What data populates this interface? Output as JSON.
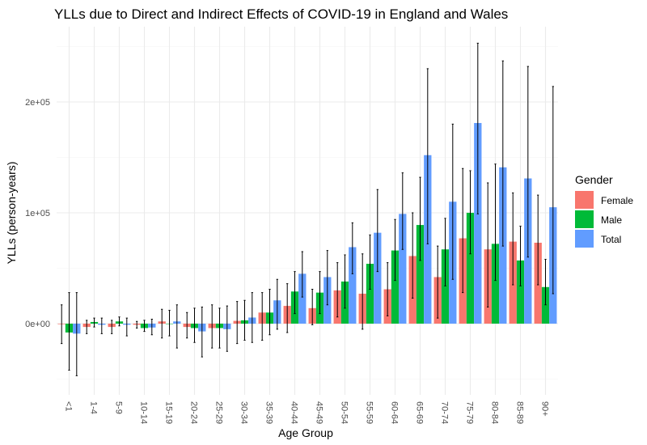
{
  "chart_data": {
    "type": "bar",
    "title": "YLLs due to Direct and Indirect Effects of COVID-19 in England and Wales",
    "xlabel": "Age Group",
    "ylabel": "YLLs (person-years)",
    "ylim": [
      -62000,
      255000
    ],
    "yticks": [
      0,
      100000,
      200000
    ],
    "ytick_labels": [
      "0e+00",
      "1e+05",
      "2e+05"
    ],
    "grid": true,
    "categories": [
      "<1",
      "1-4",
      "5-9",
      "10-14",
      "15-19",
      "20-24",
      "25-29",
      "30-34",
      "35-39",
      "40-44",
      "45-49",
      "50-54",
      "55-59",
      "60-64",
      "65-69",
      "70-74",
      "75-79",
      "80-84",
      "85-89",
      "90+"
    ],
    "legend": {
      "title": "Gender",
      "position": "right"
    },
    "series": [
      {
        "name": "Female",
        "color": "#F8766D",
        "values": [
          -500,
          -3000,
          -3000,
          -1000,
          2000,
          -3000,
          -4000,
          2500,
          10000,
          16000,
          14000,
          30000,
          27000,
          31000,
          61000,
          42000,
          77000,
          67000,
          74000,
          73000
        ],
        "err_low": [
          -18000,
          -9000,
          -9000,
          -4000,
          -13000,
          -13000,
          -22000,
          -18000,
          -15000,
          -8000,
          -1000,
          6000,
          -5000,
          7000,
          23000,
          5000,
          28000,
          15000,
          35000,
          35000
        ],
        "err_high": [
          17000,
          3000,
          3000,
          2000,
          13000,
          10000,
          17000,
          20000,
          28000,
          36000,
          31000,
          55000,
          63000,
          55000,
          100000,
          70000,
          140000,
          127000,
          118000,
          116000
        ]
      },
      {
        "name": "Male",
        "color": "#00BA38",
        "values": [
          -8000,
          1500,
          2000,
          -4000,
          0,
          -4000,
          -4000,
          3000,
          10000,
          29000,
          28000,
          38000,
          54000,
          66000,
          89000,
          67000,
          100000,
          72000,
          57000,
          33000
        ],
        "err_low": [
          -42000,
          -3000,
          -2000,
          -7000,
          -11000,
          -17000,
          -22000,
          -15000,
          -10000,
          9000,
          9000,
          14000,
          31000,
          39000,
          57000,
          34000,
          63000,
          39000,
          34000,
          17000
        ],
        "err_high": [
          28000,
          5000,
          6000,
          3000,
          12000,
          14000,
          14000,
          21000,
          31000,
          47000,
          47000,
          62000,
          80000,
          94000,
          132000,
          95000,
          138000,
          144000,
          88000,
          58000
        ]
      },
      {
        "name": "Total",
        "color": "#619CFF",
        "values": [
          -9000,
          -1000,
          -1000,
          -3500,
          2000,
          -7000,
          -5000,
          5500,
          21000,
          45000,
          42000,
          69000,
          82000,
          99000,
          152000,
          110000,
          181000,
          141000,
          131000,
          105000
        ],
        "err_low": [
          -47000,
          -9000,
          -11000,
          -10000,
          -22000,
          -30000,
          -25000,
          -17000,
          -5000,
          24000,
          17000,
          45000,
          47000,
          67000,
          72000,
          40000,
          99000,
          70000,
          60000,
          27000
        ],
        "err_high": [
          28000,
          5000,
          5000,
          4000,
          17000,
          15000,
          16000,
          28000,
          40000,
          65000,
          66000,
          91000,
          121000,
          136000,
          230000,
          180000,
          253000,
          237000,
          232000,
          214000
        ]
      }
    ]
  }
}
